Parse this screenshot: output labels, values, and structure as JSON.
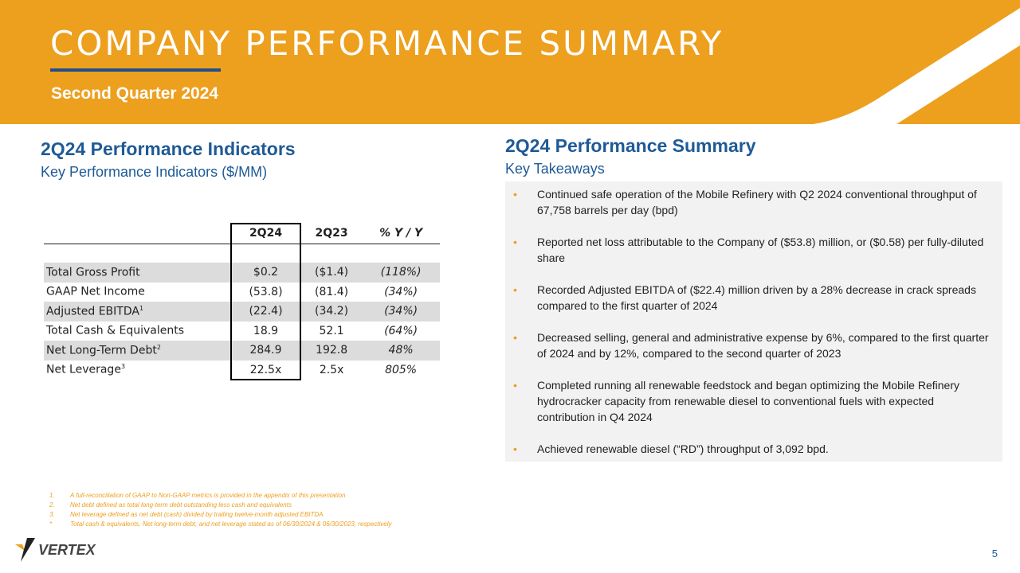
{
  "header": {
    "title": "COMPANY PERFORMANCE SUMMARY",
    "subtitle": "Second Quarter 2024"
  },
  "left": {
    "heading": "2Q24 Performance Indicators",
    "subheading": "Key Performance Indicators ($/MM)",
    "table": {
      "columns": [
        "",
        "2Q24",
        "2Q23",
        "% Y / Y"
      ],
      "rows": [
        {
          "label": "Total Gross Profit",
          "sup": "",
          "c1": "$0.2",
          "c2": "($1.4)",
          "c3": "(118%)"
        },
        {
          "label": "GAAP Net Income",
          "sup": "",
          "c1": "(53.8)",
          "c2": "(81.4)",
          "c3": "(34%)"
        },
        {
          "label": "Adjusted EBITDA",
          "sup": "1",
          "c1": "(22.4)",
          "c2": "(34.2)",
          "c3": "(34%)"
        },
        {
          "label": "Total Cash & Equivalents",
          "sup": "",
          "c1": "18.9",
          "c2": "52.1",
          "c3": "(64%)"
        },
        {
          "label": "Net Long-Term Debt",
          "sup": "2",
          "c1": "284.9",
          "c2": "192.8",
          "c3": "48%"
        },
        {
          "label": "Net Leverage",
          "sup": "3",
          "c1": "22.5x",
          "c2": "2.5x",
          "c3": "805%"
        }
      ]
    }
  },
  "right": {
    "heading": "2Q24 Performance Summary",
    "subheading": "Key Takeaways",
    "bullets": [
      "Continued safe operation of the Mobile Refinery with Q2 2024 conventional throughput of 67,758  barrels per day (bpd)",
      "Reported net loss attributable to the Company of ($53.8) million, or ($0.58) per fully-diluted share",
      "Recorded Adjusted EBITDA of ($22.4) million driven by a 28% decrease in crack spreads compared to the first quarter of 2024",
      "Decreased selling, general and administrative expense by 6%, compared to the first quarter of 2024 and by 12%, compared to the second quarter of 2023",
      "Completed running all renewable feedstock and began optimizing the Mobile Refinery hydrocracker capacity from renewable diesel to conventional fuels with expected contribution in Q4 2024",
      "Achieved renewable diesel (“RD”) throughput of 3,092 bpd."
    ]
  },
  "footnotes": [
    {
      "n": "1.",
      "text": "A full-reconciliation of GAAP to Non-GAAP metrics is provided in the appendix of this presentation"
    },
    {
      "n": "2.",
      "text": "Net debt defined as total long-term debt outstanding less cash and equivalents"
    },
    {
      "n": "3.",
      "text": "Net leverage defined as net debt (cash) divided by trailing twelve-month adjusted EBITDA"
    },
    {
      "n": "*",
      "text": "Total cash & equivalents, Net long-term debt, and net leverage stated as of 06/30/2024 & 06/30/2023, respectively"
    }
  ],
  "logo": "VERTEX",
  "page_number": "5",
  "colors": {
    "accent": "#ED9F1E",
    "blue": "#1F5A96"
  }
}
